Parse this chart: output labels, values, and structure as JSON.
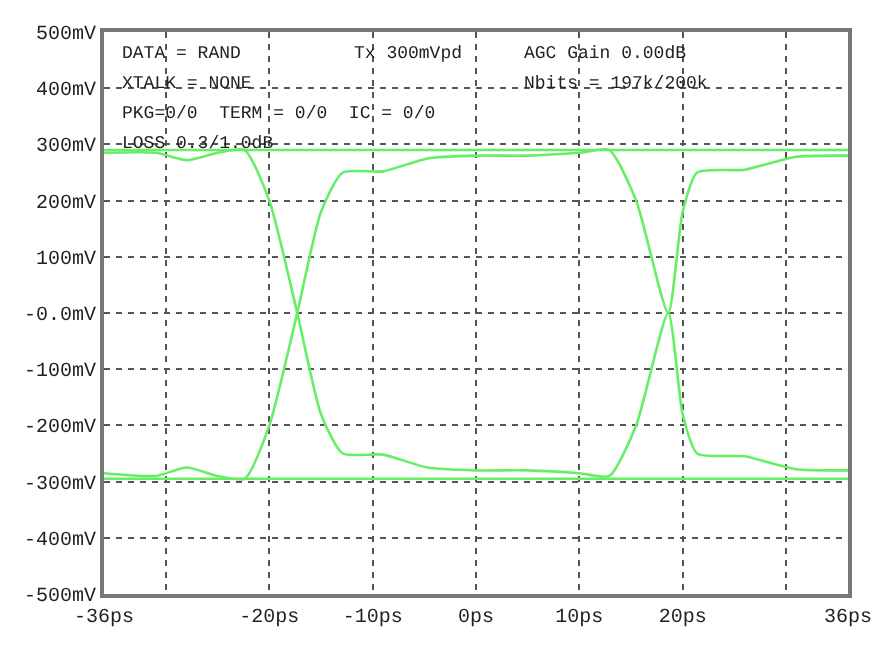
{
  "chart_data": {
    "type": "line",
    "annotations": [
      "DATA = RAND",
      "Tx 300mVpd",
      "AGC Gain 0.00dB",
      "XTALK = NONE",
      "Nbits = 197k/200k",
      "PKG=0/0  TERM = 0/0  IC = 0/0",
      "LOSS 0.3/1.0dB"
    ],
    "series": [
      {
        "color": "#66ee66",
        "x": [
          -36,
          -31,
          -28,
          -25,
          -22.4,
          -20,
          -17.3,
          -15,
          -12.9,
          -9,
          -4.7,
          0,
          5,
          10,
          12.9,
          15.5,
          18.6,
          20,
          21.4,
          26,
          31,
          36
        ],
        "values": [
          285,
          285,
          272,
          285,
          290,
          200,
          0,
          -180,
          -250,
          -252,
          -275,
          -280,
          -280,
          -285,
          -290,
          -200,
          0,
          -180,
          -250,
          -255,
          -278,
          -280
        ]
      },
      {
        "color": "#66ee66",
        "x": [
          -36,
          -31,
          -28,
          -25,
          -22.4,
          -20,
          -17.3,
          -15,
          -12.9,
          -9,
          -4.7,
          0,
          5,
          10,
          12.9,
          15.5,
          18.6,
          20,
          21.4,
          26,
          31,
          36
        ],
        "values": [
          -285,
          -290,
          -275,
          -290,
          -295,
          -200,
          0,
          180,
          250,
          252,
          275,
          280,
          280,
          285,
          290,
          200,
          0,
          180,
          250,
          255,
          278,
          280
        ]
      },
      {
        "color": "#66ee66",
        "x": [
          -36,
          36
        ],
        "values": [
          290,
          290
        ]
      },
      {
        "color": "#66ee66",
        "x": [
          -36,
          36
        ],
        "values": [
          -295,
          -295
        ]
      }
    ],
    "xlim": [
      -36,
      36
    ],
    "xticks": [
      {
        "value": -36,
        "label": "-36ps"
      },
      {
        "value": -30,
        "label": null
      },
      {
        "value": -20,
        "label": "-20ps"
      },
      {
        "value": -10,
        "label": "-10ps"
      },
      {
        "value": 0,
        "label": "0ps"
      },
      {
        "value": 10,
        "label": "10ps"
      },
      {
        "value": 20,
        "label": "20ps"
      },
      {
        "value": 30,
        "label": null
      },
      {
        "value": 36,
        "label": "36ps"
      }
    ],
    "ylim": [
      -500,
      500
    ],
    "yticks": [
      {
        "value": -500,
        "label": "-500mV"
      },
      {
        "value": -400,
        "label": "-400mV"
      },
      {
        "value": -300,
        "label": "-300mV"
      },
      {
        "value": -200,
        "label": "-200mV"
      },
      {
        "value": -100,
        "label": "-100mV"
      },
      {
        "value": 0,
        "label": "-0.0mV"
      },
      {
        "value": 100,
        "label": "100mV"
      },
      {
        "value": 200,
        "label": "200mV"
      },
      {
        "value": 300,
        "label": "300mV"
      },
      {
        "value": 400,
        "label": "400mV"
      },
      {
        "value": 500,
        "label": "500mV"
      }
    ],
    "grid": true,
    "marker": "none",
    "line_style": "solid"
  }
}
